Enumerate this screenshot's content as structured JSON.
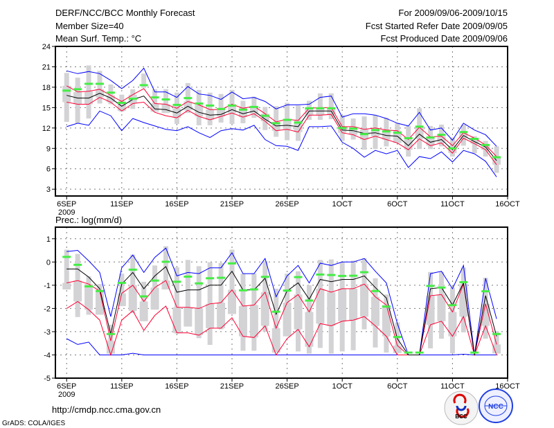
{
  "header": {
    "title": "DERF/NCC/BCC Monthly Forecast",
    "member_size": "Member Size=40",
    "variable": "Mean Surf. Temp.: °C",
    "period": "For 2009/09/06-2009/10/15",
    "started": "Fcst Started Refer Date 2009/09/05",
    "produced": "Fcst Produced Date 2009/09/06"
  },
  "footer": {
    "url": "http://cmdp.ncc.cma.gov.cn",
    "credit": "GrADS: COLA/IGES",
    "logo_bcc": "BCC",
    "logo_ncc": "NCC"
  },
  "colors": {
    "mean": "#000000",
    "quartile": "#ff0033",
    "extreme": "#0000ff",
    "observed": "#44ee44",
    "spread": "#d3d3d6"
  },
  "chart_data": [
    {
      "type": "line",
      "title": "Mean Surf. Temp.: °C",
      "xlabel": "",
      "ylabel": "",
      "x_start": "2009-09-06",
      "n_days": 40,
      "xticks": [
        {
          "day": 0,
          "label": "6SEP",
          "sub": "2009"
        },
        {
          "day": 5,
          "label": "11SEP"
        },
        {
          "day": 10,
          "label": "16SEP"
        },
        {
          "day": 15,
          "label": "21SEP"
        },
        {
          "day": 20,
          "label": "26SEP"
        },
        {
          "day": 25,
          "label": "1OCT"
        },
        {
          "day": 30,
          "label": "6OCT"
        },
        {
          "day": 35,
          "label": "11OCT"
        },
        {
          "day": 40,
          "label": "16OCT"
        }
      ],
      "ylim": [
        2,
        24
      ],
      "yticks": [
        3,
        6,
        9,
        12,
        15,
        18,
        21,
        24
      ],
      "grid": true,
      "spread_low": [
        12.9,
        12.7,
        13.4,
        15.6,
        15.5,
        14.4,
        14.8,
        17.9,
        14.4,
        14.2,
        12.6,
        14.2,
        12.4,
        12.4,
        12.8,
        12.6,
        12.7,
        13.5,
        11.7,
        10.7,
        10.2,
        10.1,
        13.2,
        13.2,
        13.3,
        10.1,
        10.3,
        8.8,
        8.9,
        9.3,
        9.8,
        7.8,
        8.9,
        8.9,
        9.3,
        7.8,
        9.4,
        8.3,
        7.8,
        5.4
      ],
      "spread_high": [
        20.1,
        19.4,
        21.2,
        20.4,
        18.4,
        16.9,
        17.7,
        20.0,
        17.7,
        17.7,
        17.2,
        18.6,
        17.6,
        17.2,
        17.0,
        17.6,
        16.0,
        16.6,
        15.1,
        15.2,
        15.7,
        15.3,
        16.0,
        17.1,
        17.1,
        13.9,
        13.4,
        13.7,
        13.9,
        13.5,
        12.7,
        12.3,
        14.9,
        12.3,
        12.5,
        10.6,
        12.5,
        10.8,
        10.1,
        9.3
      ],
      "series": [
        {
          "name": "max",
          "color": "extreme",
          "values": [
            20.4,
            20.0,
            20.3,
            20.0,
            19.0,
            17.8,
            19.0,
            20.8,
            17.3,
            17.3,
            16.5,
            18.1,
            17.0,
            16.8,
            16.2,
            17.3,
            16.3,
            16.5,
            15.9,
            14.8,
            15.4,
            15.4,
            15.5,
            16.5,
            16.7,
            13.6,
            14.1,
            14.1,
            13.9,
            13.4,
            12.7,
            12.3,
            14.3,
            11.7,
            12.0,
            10.2,
            12.7,
            11.7,
            11.0,
            9.3
          ]
        },
        {
          "name": "min",
          "color": "extreme",
          "values": [
            12.2,
            12.7,
            12.4,
            14.5,
            13.8,
            11.6,
            13.4,
            12.8,
            12.3,
            11.8,
            11.6,
            12.2,
            11.3,
            10.6,
            11.6,
            11.9,
            11.7,
            12.4,
            10.3,
            9.4,
            9.3,
            8.7,
            12.2,
            12.2,
            12.3,
            9.9,
            9.0,
            7.7,
            8.7,
            8.2,
            8.7,
            6.2,
            7.8,
            7.5,
            8.5,
            7.0,
            8.7,
            8.2,
            7.1,
            4.8
          ]
        },
        {
          "name": "upper",
          "color": "quartile",
          "values": [
            18.2,
            17.3,
            17.4,
            17.7,
            16.8,
            15.9,
            16.9,
            17.8,
            15.6,
            15.5,
            14.9,
            15.9,
            15.4,
            14.7,
            14.7,
            15.5,
            14.9,
            15.2,
            14.1,
            12.9,
            13.3,
            13.1,
            14.9,
            15.0,
            15.0,
            12.2,
            12.2,
            11.8,
            12.0,
            11.7,
            11.6,
            10.3,
            12.1,
            10.7,
            10.8,
            9.4,
            11.3,
            10.5,
            9.5,
            7.8
          ]
        },
        {
          "name": "lower",
          "color": "quartile",
          "values": [
            15.8,
            15.5,
            15.5,
            16.5,
            15.8,
            14.5,
            15.6,
            15.8,
            14.3,
            13.8,
            13.5,
            14.6,
            13.7,
            13.2,
            13.7,
            14.2,
            13.6,
            14.1,
            13.0,
            11.6,
            11.8,
            11.4,
            13.9,
            13.9,
            14.0,
            11.3,
            11.0,
            10.3,
            10.8,
            10.3,
            9.8,
            8.8,
            10.4,
            9.4,
            9.8,
            8.3,
            10.5,
            9.7,
            8.8,
            6.6
          ]
        },
        {
          "name": "mean",
          "color": "mean",
          "values": [
            16.8,
            16.4,
            16.4,
            17.1,
            16.4,
            15.2,
            16.2,
            16.7,
            14.8,
            14.7,
            14.2,
            15.2,
            14.3,
            13.9,
            14.0,
            14.7,
            14.1,
            14.5,
            13.3,
            12.3,
            12.4,
            12.2,
            14.5,
            14.5,
            14.5,
            11.7,
            11.6,
            11.2,
            11.3,
            10.9,
            10.8,
            9.4,
            11.1,
            9.9,
            10.3,
            8.8,
            10.9,
            10.0,
            9.2,
            7.2
          ]
        }
      ],
      "observed": [
        17.5,
        17.7,
        18.5,
        18.5,
        17.2,
        15.7,
        16.3,
        18.3,
        16.5,
        16.2,
        15.4,
        16.4,
        15.6,
        15.3,
        14.8,
        15.3,
        14.7,
        15.1,
        13.8,
        12.7,
        13.2,
        12.8,
        14.9,
        14.9,
        14.9,
        12.0,
        11.9,
        11.1,
        11.7,
        11.5,
        11.3,
        10.5,
        12.2,
        10.6,
        11.0,
        9.0,
        11.4,
        10.4,
        9.5,
        7.7
      ]
    },
    {
      "type": "line",
      "title": "Prec.: log(mm/d)",
      "xlabel": "",
      "ylabel": "",
      "x_start": "2009-09-06",
      "n_days": 40,
      "xticks": [
        {
          "day": 0,
          "label": "6SEP",
          "sub": "2009"
        },
        {
          "day": 5,
          "label": "11SEP"
        },
        {
          "day": 10,
          "label": "16SEP"
        },
        {
          "day": 15,
          "label": "21SEP"
        },
        {
          "day": 20,
          "label": "26SEP"
        },
        {
          "day": 25,
          "label": "1OCT"
        },
        {
          "day": 30,
          "label": "6OCT"
        },
        {
          "day": 35,
          "label": "11OCT"
        },
        {
          "day": 40,
          "label": "16OCT"
        }
      ],
      "ylim": [
        -5,
        1.5
      ],
      "yticks": [
        -5,
        -4,
        -3,
        -2,
        -1,
        0,
        1
      ],
      "grid": true,
      "spread_low": [
        -1.18,
        -2.37,
        -2.27,
        -2.27,
        -3.95,
        -1.9,
        -2.2,
        -2.55,
        -2.05,
        -1.18,
        -3.08,
        -2.78,
        -3.28,
        -3.57,
        -2.9,
        -2.24,
        -3.82,
        -3.82,
        -3.0,
        -3.9,
        -3.2,
        -3.85,
        -3.95,
        -3.7,
        -3.95,
        -3.85,
        -3.8,
        -2.9,
        -3.68,
        -3.9,
        -3.92,
        -4,
        -4,
        -3.72,
        -3.3,
        -3.94,
        -3.03,
        -4,
        -3.3,
        -3.94
      ],
      "spread_high": [
        0.53,
        0.35,
        -0.62,
        -0.95,
        -2.7,
        -0.5,
        0.32,
        -0.85,
        -0.15,
        0.68,
        -0.23,
        0.09,
        -0.18,
        -0.01,
        -0.04,
        0.53,
        -0.5,
        -0.5,
        0.04,
        -1.15,
        -0.5,
        -0.4,
        -1.0,
        0.09,
        0.11,
        -0.01,
        0.06,
        0.16,
        -0.7,
        -1.4,
        -2.6,
        -4,
        -4,
        -0.43,
        -0.43,
        -1.1,
        -0.24,
        -4,
        -0.68,
        -2.98
      ],
      "series": [
        {
          "name": "max",
          "color": "extreme",
          "values": [
            0.45,
            0.5,
            0.05,
            -0.45,
            -2.35,
            -0.25,
            0.3,
            -0.45,
            0.2,
            0.6,
            -0.6,
            -0.45,
            -0.5,
            -0.25,
            -0.25,
            0.4,
            -0.5,
            -0.5,
            0.15,
            -1.5,
            -0.6,
            -0.15,
            -0.9,
            -0.05,
            -0.15,
            0.0,
            0.0,
            0.15,
            -0.4,
            -0.9,
            -2.65,
            -4,
            -4,
            -0.5,
            -0.4,
            -1.15,
            -0.15,
            -4,
            -0.7,
            -2.45
          ]
        },
        {
          "name": "min",
          "color": "extreme",
          "values": [
            -3.3,
            -3.55,
            -3.45,
            -4,
            -4,
            -4,
            -3.93,
            -4,
            -4,
            -4,
            -4,
            -4,
            -4,
            -4,
            -4,
            -4,
            -4,
            -4,
            -4,
            -4,
            -4,
            -4,
            -4,
            -4,
            -4,
            -4,
            -4,
            -4,
            -4,
            -4,
            -4,
            -4,
            -4,
            -4,
            -4,
            -4,
            -3.97,
            -4,
            -4,
            -4
          ]
        },
        {
          "name": "upper",
          "color": "quartile",
          "values": [
            -0.9,
            -0.8,
            -0.95,
            -1.25,
            -3.4,
            -1.35,
            -1.0,
            -1.7,
            -1.1,
            -0.8,
            -1.95,
            -1.95,
            -2.0,
            -1.8,
            -1.75,
            -1.2,
            -1.9,
            -1.85,
            -1.3,
            -2.85,
            -1.75,
            -1.4,
            -2.15,
            -1.15,
            -1.3,
            -1.15,
            -1.15,
            -0.95,
            -1.5,
            -1.85,
            -3.6,
            -4,
            -4,
            -1.45,
            -1.4,
            -2.15,
            -0.95,
            -4,
            -1.8,
            -3.55
          ]
        },
        {
          "name": "lower",
          "color": "quartile",
          "values": [
            -2.0,
            -1.7,
            -2.05,
            -2.5,
            -4,
            -2.5,
            -2.1,
            -2.95,
            -2.3,
            -1.9,
            -3.05,
            -3.05,
            -3.15,
            -2.85,
            -2.85,
            -2.4,
            -3.2,
            -3.25,
            -2.75,
            -4,
            -3.3,
            -2.9,
            -3.65,
            -2.65,
            -2.75,
            -2.55,
            -2.5,
            -2.35,
            -2.75,
            -3.2,
            -4,
            -4,
            -4,
            -2.7,
            -2.55,
            -3.2,
            -2.35,
            -4,
            -2.75,
            -4
          ]
        },
        {
          "name": "mean",
          "color": "mean",
          "values": [
            -0.3,
            -0.3,
            -0.65,
            -1.15,
            -3.1,
            -0.95,
            -0.45,
            -1.15,
            -0.6,
            -0.2,
            -1.3,
            -1.2,
            -1.2,
            -1.0,
            -1.0,
            -0.4,
            -1.2,
            -1.2,
            -0.7,
            -2.25,
            -1.25,
            -0.9,
            -1.6,
            -0.75,
            -0.85,
            -0.75,
            -0.75,
            -0.6,
            -1.1,
            -1.55,
            -3.3,
            -4,
            -4,
            -1.15,
            -1.1,
            -1.85,
            -0.9,
            -4,
            -1.45,
            -3.2
          ]
        }
      ],
      "observed": [
        0.22,
        -0.12,
        -1.05,
        -1.25,
        -3.1,
        -0.9,
        -0.33,
        -1.48,
        -0.8,
        0.01,
        -0.85,
        -0.63,
        -0.92,
        -0.7,
        -0.68,
        -0.06,
        -1.22,
        -1.18,
        -0.64,
        -2.14,
        -1.23,
        -0.65,
        -1.66,
        -0.54,
        -0.56,
        -0.6,
        -0.59,
        -0.44,
        -1.25,
        -1.92,
        -3.23,
        -3.9,
        -3.9,
        -1.03,
        -1.1,
        -1.86,
        -0.87,
        -3.9,
        -1.26,
        -3.1
      ]
    }
  ]
}
